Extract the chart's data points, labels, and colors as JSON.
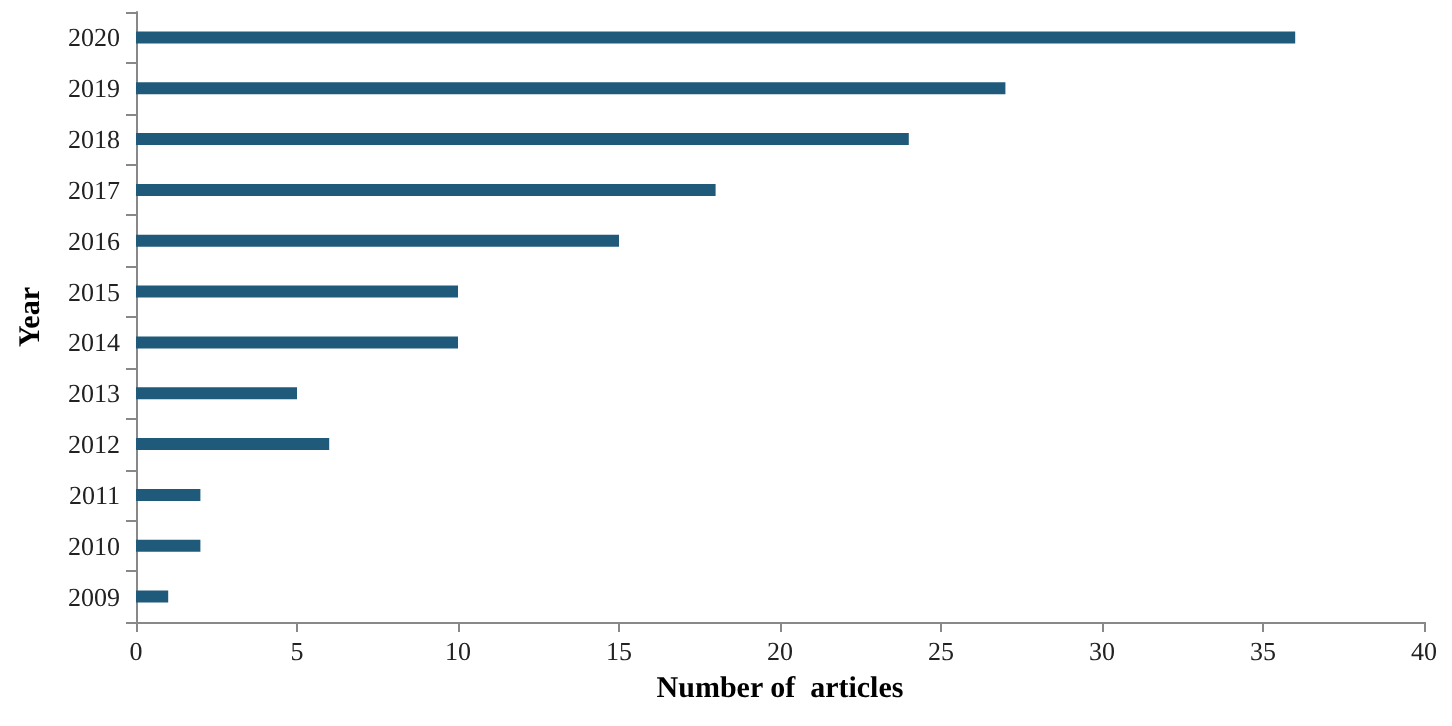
{
  "chart_data": {
    "type": "bar",
    "orientation": "horizontal",
    "xlabel": "Number of  articles",
    "ylabel": "Year",
    "categories": [
      "2020",
      "2019",
      "2018",
      "2017",
      "2016",
      "2015",
      "2014",
      "2013",
      "2012",
      "2011",
      "2010",
      "2009"
    ],
    "values": [
      36,
      27,
      24,
      18,
      15,
      10,
      10,
      5,
      6,
      2,
      2,
      1
    ],
    "color": "#1f5a7a",
    "xlim": [
      0,
      40
    ],
    "xticks": [
      0,
      5,
      10,
      15,
      20,
      25,
      30,
      35,
      40
    ],
    "grid": false
  }
}
